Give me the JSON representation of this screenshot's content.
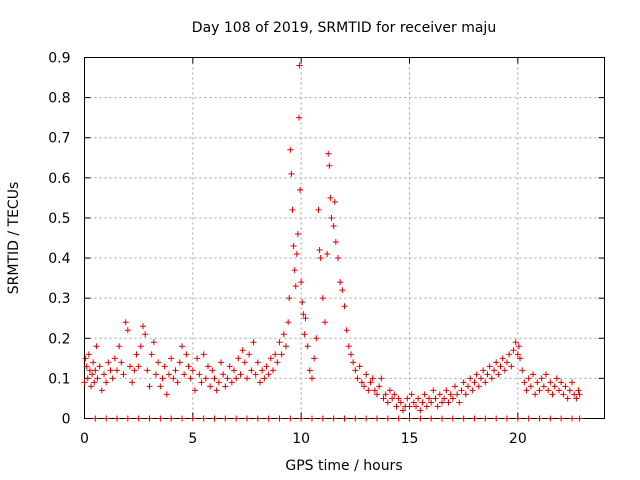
{
  "chart_data": {
    "type": "scatter",
    "title": "Day 108 of 2019, SRMTID for receiver maju",
    "xlabel": "GPS time / hours",
    "ylabel": "SRMTID / TECUs",
    "xlim": [
      0,
      24
    ],
    "ylim": [
      0,
      0.9
    ],
    "grid": true,
    "marker": "+",
    "color": "#e00000",
    "x_ticks": [
      "0",
      "5",
      "10",
      "15",
      "20"
    ],
    "x_tick_values": [
      0,
      5,
      10,
      15,
      20
    ],
    "y_ticks": [
      "0",
      "0.1",
      "0.2",
      "0.3",
      "0.4",
      "0.5",
      "0.6",
      "0.7",
      "0.8",
      "0.9"
    ],
    "y_tick_values": [
      0,
      0.1,
      0.2,
      0.3,
      0.4,
      0.5,
      0.6,
      0.7,
      0.8,
      0.9
    ],
    "series": [
      {
        "name": "SRMTID",
        "points": [
          [
            0.0,
            0.09
          ],
          [
            0.05,
            0.15
          ],
          [
            0.1,
            0.13
          ],
          [
            0.15,
            0.1
          ],
          [
            0.2,
            0.16
          ],
          [
            0.25,
            0.12
          ],
          [
            0.3,
            0.08
          ],
          [
            0.35,
            0.11
          ],
          [
            0.4,
            0.14
          ],
          [
            0.45,
            0.09
          ],
          [
            0.5,
            0.12
          ],
          [
            0.55,
            0.18
          ],
          [
            0.6,
            0.1
          ],
          [
            0.7,
            0.13
          ],
          [
            0.8,
            0.07
          ],
          [
            0.9,
            0.11
          ],
          [
            1.0,
            0.09
          ],
          [
            1.1,
            0.14
          ],
          [
            1.2,
            0.12
          ],
          [
            1.3,
            0.1
          ],
          [
            1.4,
            0.15
          ],
          [
            1.5,
            0.12
          ],
          [
            1.6,
            0.18
          ],
          [
            1.7,
            0.14
          ],
          [
            1.8,
            0.11
          ],
          [
            1.9,
            0.24
          ],
          [
            2.0,
            0.22
          ],
          [
            2.1,
            0.13
          ],
          [
            2.2,
            0.09
          ],
          [
            2.3,
            0.12
          ],
          [
            2.4,
            0.16
          ],
          [
            2.5,
            0.13
          ],
          [
            2.6,
            0.18
          ],
          [
            2.7,
            0.23
          ],
          [
            2.8,
            0.21
          ],
          [
            2.9,
            0.12
          ],
          [
            3.0,
            0.08
          ],
          [
            3.1,
            0.16
          ],
          [
            3.2,
            0.19
          ],
          [
            3.3,
            0.11
          ],
          [
            3.4,
            0.14
          ],
          [
            3.5,
            0.08
          ],
          [
            3.6,
            0.1
          ],
          [
            3.7,
            0.13
          ],
          [
            3.8,
            0.06
          ],
          [
            3.9,
            0.11
          ],
          [
            4.0,
            0.15
          ],
          [
            4.1,
            0.1
          ],
          [
            4.2,
            0.12
          ],
          [
            4.3,
            0.09
          ],
          [
            4.4,
            0.14
          ],
          [
            4.5,
            0.18
          ],
          [
            4.6,
            0.11
          ],
          [
            4.7,
            0.16
          ],
          [
            4.8,
            0.13
          ],
          [
            4.9,
            0.1
          ],
          [
            5.0,
            0.12
          ],
          [
            5.1,
            0.07
          ],
          [
            5.2,
            0.15
          ],
          [
            5.3,
            0.11
          ],
          [
            5.4,
            0.09
          ],
          [
            5.5,
            0.16
          ],
          [
            5.6,
            0.1
          ],
          [
            5.7,
            0.13
          ],
          [
            5.8,
            0.08
          ],
          [
            5.9,
            0.12
          ],
          [
            6.0,
            0.1
          ],
          [
            6.1,
            0.07
          ],
          [
            6.2,
            0.09
          ],
          [
            6.3,
            0.14
          ],
          [
            6.4,
            0.11
          ],
          [
            6.5,
            0.08
          ],
          [
            6.6,
            0.1
          ],
          [
            6.7,
            0.13
          ],
          [
            6.8,
            0.09
          ],
          [
            6.9,
            0.12
          ],
          [
            7.0,
            0.1
          ],
          [
            7.1,
            0.15
          ],
          [
            7.2,
            0.11
          ],
          [
            7.3,
            0.17
          ],
          [
            7.4,
            0.14
          ],
          [
            7.5,
            0.1
          ],
          [
            7.6,
            0.16
          ],
          [
            7.7,
            0.12
          ],
          [
            7.8,
            0.19
          ],
          [
            7.9,
            0.11
          ],
          [
            8.0,
            0.14
          ],
          [
            8.1,
            0.09
          ],
          [
            8.2,
            0.12
          ],
          [
            8.3,
            0.1
          ],
          [
            8.4,
            0.13
          ],
          [
            8.5,
            0.11
          ],
          [
            8.6,
            0.15
          ],
          [
            8.7,
            0.12
          ],
          [
            8.8,
            0.16
          ],
          [
            8.9,
            0.14
          ],
          [
            9.0,
            0.19
          ],
          [
            9.1,
            0.16
          ],
          [
            9.2,
            0.21
          ],
          [
            9.3,
            0.18
          ],
          [
            9.4,
            0.24
          ],
          [
            9.45,
            0.3
          ],
          [
            9.5,
            0.67
          ],
          [
            9.55,
            0.61
          ],
          [
            9.6,
            0.52
          ],
          [
            9.65,
            0.43
          ],
          [
            9.7,
            0.37
          ],
          [
            9.75,
            0.33
          ],
          [
            9.8,
            0.41
          ],
          [
            9.85,
            0.46
          ],
          [
            9.9,
            0.75
          ],
          [
            9.92,
            0.88
          ],
          [
            9.95,
            0.57
          ],
          [
            10.0,
            0.34
          ],
          [
            10.05,
            0.29
          ],
          [
            10.1,
            0.26
          ],
          [
            10.15,
            0.21
          ],
          [
            10.2,
            0.25
          ],
          [
            10.3,
            0.18
          ],
          [
            10.4,
            0.12
          ],
          [
            10.5,
            0.1
          ],
          [
            10.6,
            0.15
          ],
          [
            10.7,
            0.2
          ],
          [
            10.8,
            0.52
          ],
          [
            10.85,
            0.42
          ],
          [
            10.9,
            0.4
          ],
          [
            11.0,
            0.3
          ],
          [
            11.1,
            0.24
          ],
          [
            11.2,
            0.41
          ],
          [
            11.25,
            0.66
          ],
          [
            11.3,
            0.63
          ],
          [
            11.35,
            0.55
          ],
          [
            11.4,
            0.5
          ],
          [
            11.5,
            0.48
          ],
          [
            11.55,
            0.54
          ],
          [
            11.6,
            0.44
          ],
          [
            11.7,
            0.4
          ],
          [
            11.8,
            0.34
          ],
          [
            11.9,
            0.32
          ],
          [
            12.0,
            0.28
          ],
          [
            12.1,
            0.22
          ],
          [
            12.2,
            0.18
          ],
          [
            12.3,
            0.16
          ],
          [
            12.4,
            0.14
          ],
          [
            12.5,
            0.12
          ],
          [
            12.6,
            0.1
          ],
          [
            12.7,
            0.13
          ],
          [
            12.8,
            0.09
          ],
          [
            12.9,
            0.08
          ],
          [
            13.0,
            0.11
          ],
          [
            13.1,
            0.07
          ],
          [
            13.2,
            0.09
          ],
          [
            13.3,
            0.1
          ],
          [
            13.4,
            0.07
          ],
          [
            13.5,
            0.06
          ],
          [
            13.6,
            0.08
          ],
          [
            13.7,
            0.1
          ],
          [
            13.8,
            0.05
          ],
          [
            13.9,
            0.06
          ],
          [
            14.0,
            0.04
          ],
          [
            14.1,
            0.07
          ],
          [
            14.2,
            0.05
          ],
          [
            14.3,
            0.06
          ],
          [
            14.4,
            0.03
          ],
          [
            14.5,
            0.05
          ],
          [
            14.6,
            0.04
          ],
          [
            14.7,
            0.02
          ],
          [
            14.8,
            0.03
          ],
          [
            14.9,
            0.05
          ],
          [
            15.0,
            0.03
          ],
          [
            15.1,
            0.06
          ],
          [
            15.2,
            0.04
          ],
          [
            15.3,
            0.03
          ],
          [
            15.4,
            0.05
          ],
          [
            15.5,
            0.02
          ],
          [
            15.6,
            0.04
          ],
          [
            15.7,
            0.06
          ],
          [
            15.8,
            0.03
          ],
          [
            15.9,
            0.05
          ],
          [
            16.0,
            0.04
          ],
          [
            16.1,
            0.07
          ],
          [
            16.2,
            0.05
          ],
          [
            16.3,
            0.03
          ],
          [
            16.4,
            0.06
          ],
          [
            16.5,
            0.04
          ],
          [
            16.6,
            0.05
          ],
          [
            16.7,
            0.07
          ],
          [
            16.8,
            0.04
          ],
          [
            16.9,
            0.06
          ],
          [
            17.0,
            0.05
          ],
          [
            17.1,
            0.08
          ],
          [
            17.2,
            0.06
          ],
          [
            17.3,
            0.04
          ],
          [
            17.4,
            0.07
          ],
          [
            17.5,
            0.09
          ],
          [
            17.6,
            0.06
          ],
          [
            17.7,
            0.08
          ],
          [
            17.8,
            0.1
          ],
          [
            17.9,
            0.07
          ],
          [
            18.0,
            0.09
          ],
          [
            18.1,
            0.11
          ],
          [
            18.2,
            0.08
          ],
          [
            18.3,
            0.1
          ],
          [
            18.4,
            0.12
          ],
          [
            18.5,
            0.09
          ],
          [
            18.6,
            0.11
          ],
          [
            18.7,
            0.13
          ],
          [
            18.8,
            0.1
          ],
          [
            18.9,
            0.12
          ],
          [
            19.0,
            0.14
          ],
          [
            19.1,
            0.11
          ],
          [
            19.2,
            0.13
          ],
          [
            19.3,
            0.15
          ],
          [
            19.4,
            0.12
          ],
          [
            19.5,
            0.14
          ],
          [
            19.6,
            0.16
          ],
          [
            19.7,
            0.13
          ],
          [
            19.8,
            0.17
          ],
          [
            19.9,
            0.19
          ],
          [
            20.0,
            0.16
          ],
          [
            20.05,
            0.18
          ],
          [
            20.1,
            0.15
          ],
          [
            20.2,
            0.12
          ],
          [
            20.3,
            0.09
          ],
          [
            20.4,
            0.07
          ],
          [
            20.5,
            0.1
          ],
          [
            20.6,
            0.08
          ],
          [
            20.7,
            0.11
          ],
          [
            20.8,
            0.06
          ],
          [
            20.9,
            0.09
          ],
          [
            21.0,
            0.07
          ],
          [
            21.1,
            0.1
          ],
          [
            21.2,
            0.08
          ],
          [
            21.3,
            0.11
          ],
          [
            21.4,
            0.07
          ],
          [
            21.5,
            0.09
          ],
          [
            21.6,
            0.06
          ],
          [
            21.7,
            0.08
          ],
          [
            21.8,
            0.1
          ],
          [
            21.9,
            0.07
          ],
          [
            22.0,
            0.09
          ],
          [
            22.1,
            0.06
          ],
          [
            22.2,
            0.08
          ],
          [
            22.3,
            0.05
          ],
          [
            22.4,
            0.07
          ],
          [
            22.5,
            0.09
          ],
          [
            22.6,
            0.06
          ],
          [
            22.7,
            0.05
          ],
          [
            22.8,
            0.07
          ],
          [
            22.85,
            0.06
          ],
          [
            0.5,
            0.0
          ],
          [
            1.0,
            0.0
          ],
          [
            1.5,
            0.0
          ],
          [
            2.0,
            0.0
          ],
          [
            2.5,
            0.0
          ],
          [
            3.0,
            0.0
          ],
          [
            3.5,
            0.0
          ],
          [
            4.0,
            0.0
          ],
          [
            4.5,
            0.0
          ],
          [
            5.0,
            0.0
          ],
          [
            5.5,
            0.0
          ],
          [
            6.0,
            0.0
          ],
          [
            6.5,
            0.0
          ],
          [
            7.0,
            0.0
          ],
          [
            7.5,
            0.0
          ],
          [
            8.0,
            0.0
          ],
          [
            8.5,
            0.0
          ],
          [
            9.0,
            0.0
          ],
          [
            9.5,
            0.0
          ],
          [
            10.0,
            0.0
          ],
          [
            10.5,
            0.0
          ],
          [
            11.0,
            0.0
          ],
          [
            11.5,
            0.0
          ],
          [
            12.0,
            0.0
          ],
          [
            12.5,
            0.0
          ],
          [
            13.0,
            0.0
          ],
          [
            13.5,
            0.0
          ],
          [
            14.0,
            0.0
          ],
          [
            14.5,
            0.0
          ],
          [
            15.0,
            0.0
          ],
          [
            15.5,
            0.0
          ],
          [
            16.0,
            0.0
          ],
          [
            16.5,
            0.0
          ],
          [
            17.0,
            0.0
          ],
          [
            17.5,
            0.0
          ],
          [
            18.0,
            0.0
          ],
          [
            18.5,
            0.0
          ],
          [
            19.0,
            0.0
          ],
          [
            19.5,
            0.0
          ],
          [
            20.0,
            0.0
          ],
          [
            20.5,
            0.0
          ],
          [
            21.0,
            0.0
          ],
          [
            21.5,
            0.0
          ],
          [
            22.0,
            0.0
          ],
          [
            22.5,
            0.0
          ],
          [
            22.85,
            0.0
          ]
        ]
      }
    ]
  }
}
